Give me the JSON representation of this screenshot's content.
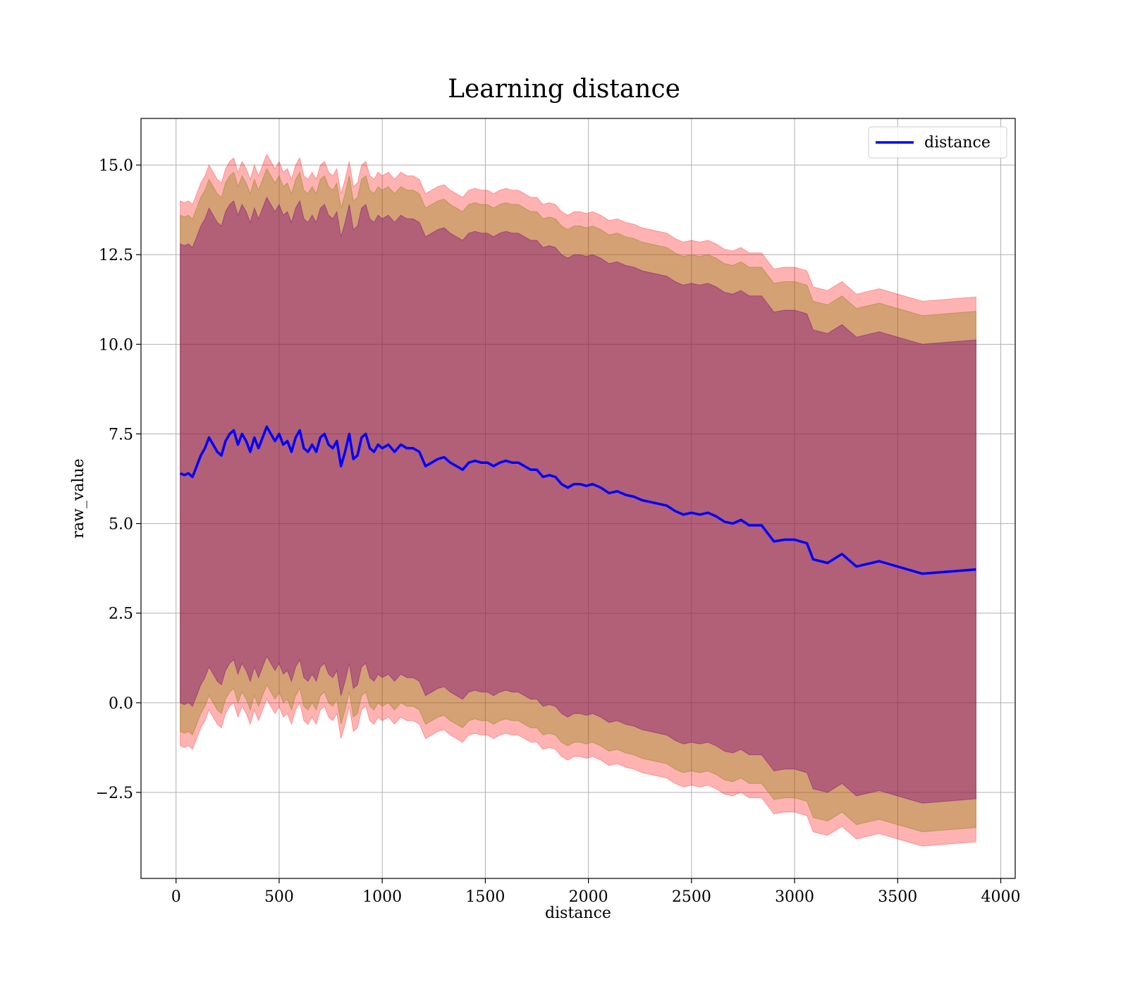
{
  "chart_data": {
    "type": "line",
    "title": "Learning distance",
    "xlabel": "distance",
    "ylabel": "raw_value",
    "xlim": [
      -170,
      4070
    ],
    "ylim": [
      -4.9,
      16.3
    ],
    "xticks": [
      0,
      500,
      1000,
      1500,
      2000,
      2500,
      3000,
      3500,
      4000
    ],
    "xtick_labels": [
      "0",
      "500",
      "1000",
      "1500",
      "2000",
      "2500",
      "3000",
      "3500",
      "4000"
    ],
    "yticks": [
      -2.5,
      0.0,
      2.5,
      5.0,
      7.5,
      10.0,
      12.5,
      15.0
    ],
    "ytick_labels": [
      "−2.5",
      "0.0",
      "2.5",
      "5.0",
      "7.5",
      "10.0",
      "12.5",
      "15.0"
    ],
    "grid": true,
    "legend": {
      "position": "top-right",
      "entries": [
        "distance"
      ]
    },
    "colors": {
      "line": "#0000ff",
      "outer_band": "#ff0000",
      "middle_band": "#808000",
      "inner_band": "#800080"
    },
    "band_half_widths": {
      "inner": 6.4,
      "middle": 7.2,
      "outer": 7.6
    },
    "series": [
      {
        "name": "distance",
        "x": [
          20,
          40,
          60,
          80,
          100,
          120,
          140,
          160,
          180,
          200,
          220,
          240,
          260,
          280,
          300,
          320,
          340,
          360,
          380,
          400,
          420,
          440,
          460,
          480,
          500,
          520,
          540,
          560,
          580,
          600,
          620,
          640,
          660,
          680,
          700,
          720,
          740,
          760,
          780,
          800,
          820,
          840,
          860,
          880,
          900,
          920,
          940,
          960,
          980,
          1000,
          1030,
          1060,
          1090,
          1120,
          1150,
          1180,
          1210,
          1240,
          1270,
          1300,
          1330,
          1360,
          1390,
          1420,
          1450,
          1480,
          1510,
          1540,
          1570,
          1600,
          1630,
          1660,
          1690,
          1720,
          1750,
          1780,
          1810,
          1840,
          1870,
          1900,
          1930,
          1960,
          1990,
          2020,
          2060,
          2100,
          2140,
          2180,
          2220,
          2260,
          2300,
          2340,
          2380,
          2420,
          2460,
          2500,
          2540,
          2580,
          2620,
          2660,
          2700,
          2740,
          2780,
          2840,
          2900,
          2950,
          3000,
          3060,
          3090,
          3160,
          3230,
          3300,
          3410,
          3620,
          3880
        ],
        "y": [
          6.4,
          6.35,
          6.4,
          6.3,
          6.6,
          6.9,
          7.1,
          7.4,
          7.2,
          7.0,
          6.9,
          7.3,
          7.5,
          7.6,
          7.2,
          7.5,
          7.3,
          7.0,
          7.4,
          7.1,
          7.4,
          7.7,
          7.5,
          7.3,
          7.5,
          7.2,
          7.3,
          7.0,
          7.4,
          7.6,
          7.1,
          7.0,
          7.2,
          7.0,
          7.4,
          7.5,
          7.2,
          7.1,
          7.3,
          6.6,
          7.0,
          7.5,
          6.8,
          6.9,
          7.4,
          7.5,
          7.1,
          7.0,
          7.2,
          7.1,
          7.2,
          7.0,
          7.2,
          7.1,
          7.1,
          7.0,
          6.6,
          6.7,
          6.8,
          6.85,
          6.7,
          6.6,
          6.5,
          6.7,
          6.75,
          6.7,
          6.7,
          6.6,
          6.7,
          6.75,
          6.7,
          6.7,
          6.6,
          6.5,
          6.5,
          6.3,
          6.35,
          6.3,
          6.1,
          6.0,
          6.1,
          6.1,
          6.05,
          6.1,
          6.0,
          5.85,
          5.9,
          5.8,
          5.75,
          5.65,
          5.6,
          5.55,
          5.5,
          5.35,
          5.25,
          5.3,
          5.25,
          5.3,
          5.2,
          5.05,
          5.0,
          5.1,
          4.95,
          4.95,
          4.5,
          4.55,
          4.55,
          4.45,
          4.0,
          3.9,
          4.15,
          3.8,
          3.95,
          3.6,
          3.72
        ]
      }
    ]
  }
}
